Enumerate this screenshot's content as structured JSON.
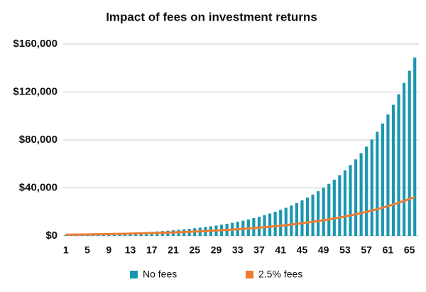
{
  "chart_data": {
    "type": "bar_line",
    "title": "Impact of fees on investment returns",
    "categories": [
      "1",
      null,
      null,
      null,
      "5",
      null,
      null,
      null,
      "9",
      null,
      null,
      null,
      "13",
      null,
      null,
      null,
      "17",
      null,
      null,
      null,
      "21",
      null,
      null,
      null,
      "25",
      null,
      null,
      null,
      "29",
      null,
      null,
      null,
      "33",
      null,
      null,
      null,
      "37",
      null,
      null,
      null,
      "41",
      null,
      null,
      null,
      "45",
      null,
      null,
      null,
      "49",
      null,
      null,
      null,
      "53",
      null,
      null,
      null,
      "57",
      null,
      null,
      null,
      "61",
      null,
      null,
      null,
      "65",
      null
    ],
    "series": [
      {
        "name": "No fees",
        "type": "bar",
        "color": "#1a97b0",
        "values": [
          1000,
          1080,
          1170,
          1260,
          1360,
          1470,
          1590,
          1710,
          1850,
          2000,
          2160,
          2330,
          2520,
          2720,
          2940,
          3170,
          3430,
          3700,
          4000,
          4320,
          4660,
          5030,
          5440,
          5870,
          6340,
          6850,
          7400,
          7990,
          8630,
          9320,
          10060,
          10870,
          11740,
          12680,
          13690,
          14790,
          15970,
          17250,
          18630,
          20120,
          21730,
          23460,
          25340,
          27370,
          29560,
          31920,
          34470,
          37230,
          40210,
          43430,
          46900,
          50650,
          54710,
          59080,
          63810,
          68910,
          74430,
          80380,
          86810,
          93760,
          101260,
          109360,
          118110,
          127560,
          137760,
          148780
        ]
      },
      {
        "name": "2.5% fees",
        "type": "line",
        "color": "#ee7d31",
        "values": [
          1000,
          1060,
          1110,
          1170,
          1240,
          1310,
          1380,
          1460,
          1540,
          1620,
          1710,
          1800,
          1900,
          2010,
          2120,
          2230,
          2360,
          2490,
          2620,
          2770,
          2920,
          3080,
          3250,
          3430,
          3620,
          3810,
          4020,
          4250,
          4480,
          4720,
          4980,
          5260,
          5550,
          5850,
          6170,
          6510,
          6870,
          7250,
          7650,
          8070,
          8510,
          8980,
          9480,
          10000,
          10550,
          11130,
          11740,
          12380,
          13070,
          13780,
          14540,
          15340,
          16190,
          17080,
          18020,
          19010,
          20050,
          21150,
          22320,
          23550,
          24840,
          26210,
          27650,
          29170,
          30770,
          32460
        ]
      }
    ],
    "ylim": [
      0,
      160000
    ],
    "yticks": [
      {
        "value": 0,
        "label": "$0"
      },
      {
        "value": 40000,
        "label": "$40,000"
      },
      {
        "value": 80000,
        "label": "$80,000"
      },
      {
        "value": 120000,
        "label": "$120,000"
      },
      {
        "value": 160000,
        "label": "$160,000"
      }
    ],
    "grid": true,
    "legend": "bottom"
  }
}
